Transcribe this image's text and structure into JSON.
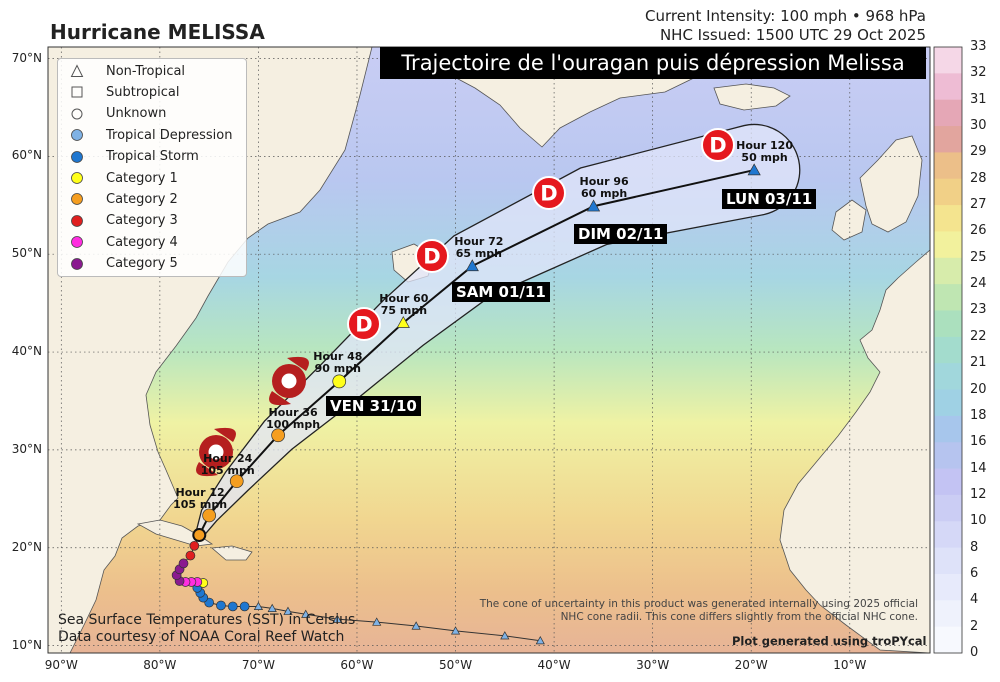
{
  "header": {
    "title": "Hurricane MELISSA",
    "intensity": "Current Intensity: 100 mph • 968 hPa",
    "issued": "NHC Issued: 1500 UTC 29 Oct 2025"
  },
  "banner": "Trajectoire de l'ouragan puis dépression Melissa",
  "legend": {
    "items": [
      {
        "label": "Non-Tropical",
        "shape": "triangle-outline",
        "color": "#ffffff"
      },
      {
        "label": "Subtropical",
        "shape": "square-outline",
        "color": "#ffffff"
      },
      {
        "label": "Unknown",
        "shape": "circle-outline",
        "color": "#ffffff"
      },
      {
        "label": "Tropical Depression",
        "shape": "circle",
        "color": "#7fb2e5"
      },
      {
        "label": "Tropical Storm",
        "shape": "circle",
        "color": "#1f77d0"
      },
      {
        "label": "Category 1",
        "shape": "circle",
        "color": "#ffff1a"
      },
      {
        "label": "Category 2",
        "shape": "circle",
        "color": "#f59e20"
      },
      {
        "label": "Category 3",
        "shape": "circle",
        "color": "#e01f1f"
      },
      {
        "label": "Category 4",
        "shape": "circle",
        "color": "#ff2de0"
      },
      {
        "label": "Category 5",
        "shape": "circle",
        "color": "#8a1a8f"
      }
    ]
  },
  "axes": {
    "lat_labels": [
      "70°N",
      "60°N",
      "50°N",
      "40°N",
      "30°N",
      "20°N",
      "10°N"
    ],
    "lon_labels": [
      "90°W",
      "80°W",
      "70°W",
      "60°W",
      "50°W",
      "40°W",
      "30°W",
      "20°W",
      "10°W"
    ]
  },
  "forecast_points": [
    {
      "hour": "Hour 12",
      "wind": "105 mph",
      "lon": -75.0,
      "lat": 23.3,
      "cat": "Category 2",
      "color": "#f59e20",
      "shape": "circle"
    },
    {
      "hour": "Hour 24",
      "wind": "105 mph",
      "lon": -72.2,
      "lat": 26.8,
      "cat": "Category 2",
      "color": "#f59e20",
      "shape": "circle"
    },
    {
      "hour": "Hour 36",
      "wind": "100 mph",
      "lon": -68.0,
      "lat": 31.5,
      "cat": "Category 2",
      "color": "#f59e20",
      "shape": "circle"
    },
    {
      "hour": "Hour 48",
      "wind": "90 mph",
      "lon": -61.8,
      "lat": 37.0,
      "cat": "Category 1",
      "color": "#ffff1a",
      "shape": "circle"
    },
    {
      "hour": "Hour 60",
      "wind": "75 mph",
      "lon": -55.3,
      "lat": 43.0,
      "cat": "Category 1",
      "color": "#ffff1a",
      "shape": "triangle"
    },
    {
      "hour": "Hour 72",
      "wind": "65 mph",
      "lon": -48.3,
      "lat": 48.8,
      "cat": "Tropical Storm",
      "color": "#1f77d0",
      "shape": "triangle"
    },
    {
      "hour": "Hour 96",
      "wind": "60 mph",
      "lon": -36.0,
      "lat": 54.9,
      "cat": "Tropical Storm",
      "color": "#1f77d0",
      "shape": "triangle"
    },
    {
      "hour": "Hour 120",
      "wind": "50 mph",
      "lon": -19.7,
      "lat": 58.6,
      "cat": "Tropical Storm",
      "color": "#1f77d0",
      "shape": "triangle"
    }
  ],
  "current_position": {
    "lon": -76.0,
    "lat": 21.3
  },
  "past_track": [
    {
      "lon": -41.4,
      "lat": 10.5,
      "color": "#7fb2e5",
      "shape": "triangle"
    },
    {
      "lon": -45.0,
      "lat": 11.0,
      "color": "#7fb2e5",
      "shape": "triangle"
    },
    {
      "lon": -50.0,
      "lat": 11.5,
      "color": "#7fb2e5",
      "shape": "triangle"
    },
    {
      "lon": -54.0,
      "lat": 12.0,
      "color": "#7fb2e5",
      "shape": "triangle"
    },
    {
      "lon": -58.0,
      "lat": 12.4,
      "color": "#7fb2e5",
      "shape": "triangle"
    },
    {
      "lon": -62.0,
      "lat": 12.7,
      "color": "#7fb2e5",
      "shape": "triangle"
    },
    {
      "lon": -65.2,
      "lat": 13.2,
      "color": "#7fb2e5",
      "shape": "triangle"
    },
    {
      "lon": -67.0,
      "lat": 13.5,
      "color": "#7fb2e5",
      "shape": "triangle"
    },
    {
      "lon": -68.6,
      "lat": 13.8,
      "color": "#7fb2e5",
      "shape": "triangle"
    },
    {
      "lon": -70.0,
      "lat": 14.0,
      "color": "#7fb2e5",
      "shape": "triangle"
    },
    {
      "lon": -71.4,
      "lat": 14.0,
      "color": "#1f77d0",
      "shape": "circle"
    },
    {
      "lon": -72.6,
      "lat": 14.0,
      "color": "#1f77d0",
      "shape": "circle"
    },
    {
      "lon": -73.8,
      "lat": 14.1,
      "color": "#1f77d0",
      "shape": "circle"
    },
    {
      "lon": -75.0,
      "lat": 14.4,
      "color": "#1f77d0",
      "shape": "circle"
    },
    {
      "lon": -75.6,
      "lat": 14.9,
      "color": "#1f77d0",
      "shape": "circle"
    },
    {
      "lon": -75.9,
      "lat": 15.4,
      "color": "#1f77d0",
      "shape": "circle"
    },
    {
      "lon": -76.2,
      "lat": 15.9,
      "color": "#1f77d0",
      "shape": "circle"
    },
    {
      "lon": -75.6,
      "lat": 16.4,
      "color": "#ffff1a",
      "shape": "circle"
    },
    {
      "lon": -76.2,
      "lat": 16.5,
      "color": "#ff2de0",
      "shape": "circle"
    },
    {
      "lon": -76.8,
      "lat": 16.5,
      "color": "#ff2de0",
      "shape": "circle"
    },
    {
      "lon": -77.4,
      "lat": 16.5,
      "color": "#ff2de0",
      "shape": "circle"
    },
    {
      "lon": -78.0,
      "lat": 16.6,
      "color": "#8a1a8f",
      "shape": "circle"
    },
    {
      "lon": -78.3,
      "lat": 17.2,
      "color": "#8a1a8f",
      "shape": "circle"
    },
    {
      "lon": -78.0,
      "lat": 17.8,
      "color": "#8a1a8f",
      "shape": "circle"
    },
    {
      "lon": -77.6,
      "lat": 18.4,
      "color": "#8a1a8f",
      "shape": "circle"
    },
    {
      "lon": -76.9,
      "lat": 19.2,
      "color": "#e01f1f",
      "shape": "circle"
    },
    {
      "lon": -76.5,
      "lat": 20.2,
      "color": "#e01f1f",
      "shape": "circle"
    }
  ],
  "annotations": {
    "day_labels": [
      "VEN 31/10",
      "SAM 01/11",
      "DIM 02/11",
      "LUN 03/11"
    ],
    "d_marker_letter": "D"
  },
  "notes": {
    "cone_note_line1": "The cone of uncertainty in this product was generated internally using 2025 official",
    "cone_note_line2": "NHC cone radii. This cone differs slightly from the official NHC cone.",
    "credit": "Plot generated using troPYcal",
    "sst_line1": "Sea Surface Temperatures (SST) in Celsius",
    "sst_line2": "Data courtesy of NOAA Coral Reef Watch"
  },
  "colorbar": {
    "labels": [
      "33",
      "32",
      "31",
      "30",
      "29",
      "28",
      "27",
      "26",
      "25",
      "24",
      "23",
      "22",
      "21",
      "20",
      "18",
      "16",
      "14",
      "12",
      "10",
      "8",
      "6",
      "4",
      "2",
      "0"
    ],
    "colors": [
      "#f5d7e7",
      "#eebcd4",
      "#e5a7b6",
      "#e2a59e",
      "#ecbf89",
      "#f1d087",
      "#f4e48f",
      "#f2f19d",
      "#d7ecab",
      "#bfe6b2",
      "#abe0be",
      "#a3dccd",
      "#a1d7dc",
      "#9fd1e4",
      "#a7c6ec",
      "#b6c4ef",
      "#c3c3f3",
      "#cbcdf4",
      "#d5d8f7",
      "#dee2f9",
      "#e7eafb",
      "#eff2fc",
      "#f7f9fe",
      "#ffffff"
    ]
  }
}
